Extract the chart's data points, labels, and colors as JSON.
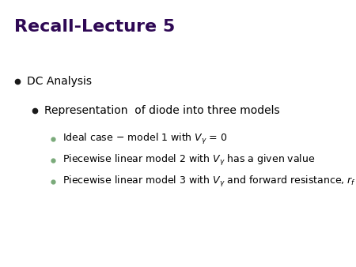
{
  "title": "Recall-Lecture 5",
  "title_color": "#2E0854",
  "title_fontsize": 16,
  "background_color": "#FFFFFF",
  "bullet1": "DC Analysis",
  "bullet1_fontsize": 10,
  "bullet2": "Representation  of diode into three models",
  "bullet2_fontsize": 10,
  "bullet_color_l1": "#1a1a1a",
  "bullet_color_l2": "#1a1a1a",
  "bullet_color_l3": "#7aaa7a",
  "sub_bullet_fontsize": 9,
  "sub_bullet_color": "#000000",
  "fig_width": 4.5,
  "fig_height": 3.38,
  "dpi": 100
}
